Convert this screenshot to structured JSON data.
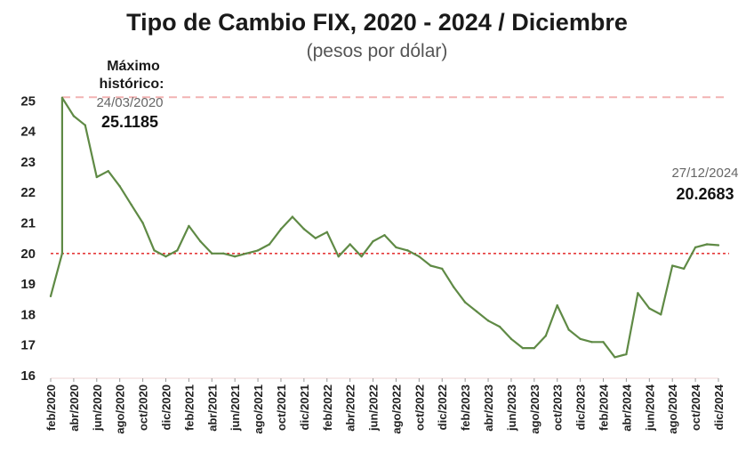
{
  "chart_data": {
    "type": "line",
    "title": "Tipo de Cambio FIX, 2020 - 2024 / Diciembre",
    "subtitle": "(pesos por dólar)",
    "ylim": [
      16,
      25.3
    ],
    "yticks": [
      "16",
      "17",
      "18",
      "19",
      "20",
      "21",
      "22",
      "23",
      "24",
      "25"
    ],
    "xlabels": [
      "feb/2020",
      "abr/2020",
      "jun/2020",
      "ago/2020",
      "oct/2020",
      "dic/2020",
      "feb/2021",
      "abr/2021",
      "jun/2021",
      "ago/2021",
      "oct/2021",
      "dic/2021",
      "feb/2022",
      "abr/2022",
      "jun/2022",
      "ago/2022",
      "oct/2022",
      "dic/2022",
      "feb/2023",
      "abr/2023",
      "jun/2023",
      "ago/2023",
      "oct/2023",
      "dic/2023",
      "feb/2024",
      "abr/2024",
      "jun/2024",
      "ago/2024",
      "oct/2024",
      "dic/2024"
    ],
    "series": [
      {
        "color": "#5f8a45",
        "x": [
          "2020-02",
          "2020-03",
          "2020-03",
          "2020-04",
          "2020-05",
          "2020-06",
          "2020-07",
          "2020-08",
          "2020-09",
          "2020-10",
          "2020-11",
          "2020-12",
          "2021-01",
          "2021-02",
          "2021-03",
          "2021-04",
          "2021-05",
          "2021-06",
          "2021-07",
          "2021-08",
          "2021-09",
          "2021-10",
          "2021-11",
          "2021-12",
          "2022-01",
          "2022-02",
          "2022-03",
          "2022-04",
          "2022-05",
          "2022-06",
          "2022-07",
          "2022-08",
          "2022-09",
          "2022-10",
          "2022-11",
          "2022-12",
          "2023-01",
          "2023-02",
          "2023-03",
          "2023-04",
          "2023-05",
          "2023-06",
          "2023-07",
          "2023-08",
          "2023-09",
          "2023-10",
          "2023-11",
          "2023-12",
          "2024-01",
          "2024-02",
          "2024-03",
          "2024-04",
          "2024-05",
          "2024-06",
          "2024-07",
          "2024-08",
          "2024-09",
          "2024-10",
          "2024-11",
          "2024-12"
        ],
        "y": [
          18.6,
          20.0,
          25.1,
          24.5,
          24.2,
          22.5,
          22.7,
          22.2,
          21.6,
          21.0,
          20.1,
          19.9,
          20.1,
          20.9,
          20.4,
          20.0,
          20.0,
          19.9,
          20.0,
          20.1,
          20.3,
          20.8,
          21.2,
          20.8,
          20.5,
          20.7,
          19.9,
          20.3,
          19.9,
          20.4,
          20.6,
          20.2,
          20.1,
          19.9,
          19.6,
          19.5,
          18.9,
          18.4,
          18.1,
          17.8,
          17.6,
          17.2,
          16.9,
          16.9,
          17.3,
          18.3,
          17.5,
          17.2,
          17.1,
          17.1,
          16.6,
          16.7,
          18.7,
          18.2,
          18.0,
          19.6,
          19.5,
          20.2,
          20.3,
          20.27
        ]
      }
    ],
    "reference_lines": [
      {
        "value": 25.1185,
        "color": "#f2b3b3",
        "style": "dashed"
      },
      {
        "value": 20.0,
        "color": "#e53b3b",
        "style": "dotted"
      }
    ],
    "annotations": [
      {
        "label": "Máximo histórico:",
        "date": "24/03/2020",
        "value": "25.1185"
      },
      {
        "label": "",
        "date": "27/12/2024",
        "value": "20.2683"
      }
    ],
    "grid": false
  }
}
